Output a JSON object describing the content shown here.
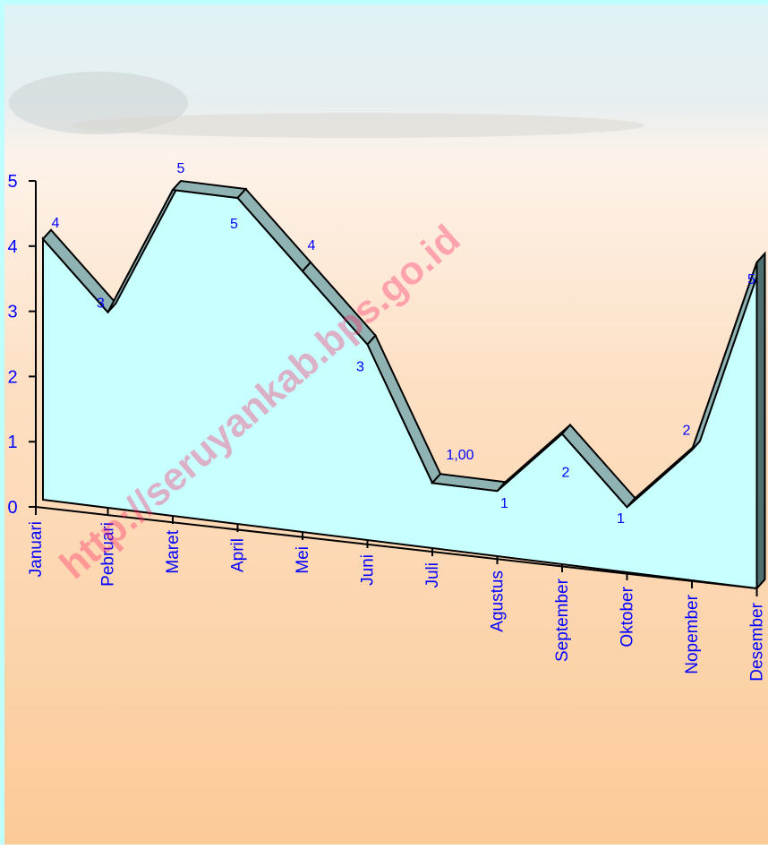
{
  "chart_data": {
    "type": "area3d",
    "watermark": "http://seruyankab.bps.go.id",
    "categories": [
      "Januari",
      "Pebruari",
      "Maret",
      "April",
      "Mei",
      "Juni",
      "Juli",
      "Agustus",
      "September",
      "Oktober",
      "Nopember",
      "Desember"
    ],
    "values": [
      4,
      3,
      5,
      5,
      4,
      3,
      1,
      1,
      2,
      1,
      2,
      5
    ],
    "value_labels": [
      "4",
      "3",
      "5",
      "5",
      "4",
      "3",
      "1,00",
      "1",
      "2",
      "1",
      "2",
      "5"
    ],
    "color": "#c8ffff",
    "ylim": [
      0,
      5
    ],
    "yticks": [
      0,
      1,
      2,
      3,
      4,
      5
    ]
  }
}
